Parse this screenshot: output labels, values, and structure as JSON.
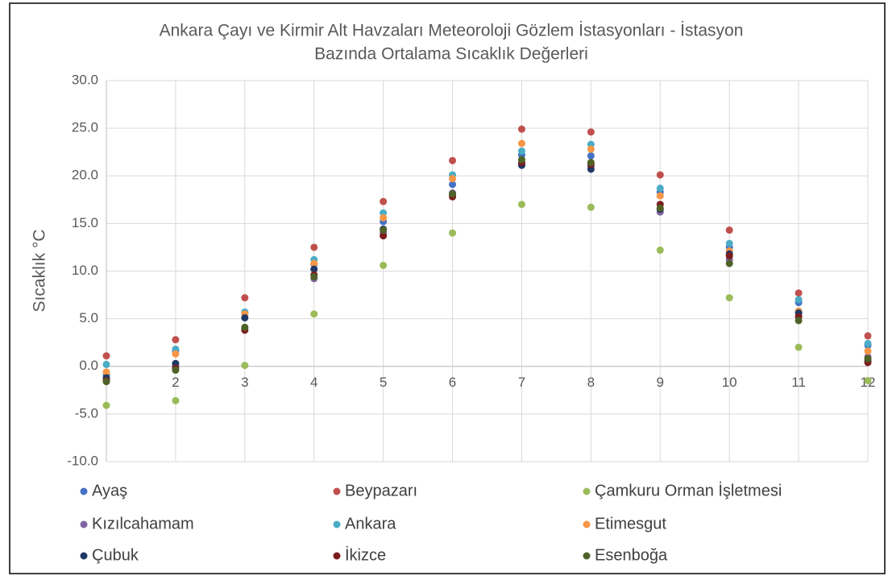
{
  "chart_data": {
    "type": "scatter",
    "title": [
      "Ankara Çayı ve Kirmir Alt Havzaları Meteoroloji Gözlem İstasyonları - İstasyon",
      "Bazında Ortalama Sıcaklık Değerleri"
    ],
    "y_label": "Sıcaklık °C",
    "x": [
      1,
      2,
      3,
      4,
      5,
      6,
      7,
      8,
      9,
      10,
      11,
      12
    ],
    "xlim": [
      1,
      12
    ],
    "xticks": [
      2,
      3,
      4,
      5,
      6,
      7,
      8,
      9,
      10,
      11,
      12
    ],
    "ylim": [
      -10,
      30
    ],
    "yticks": [
      {
        "value": -10,
        "label": "-10.0"
      },
      {
        "value": -5,
        "label": "-5.0"
      },
      {
        "value": 0,
        "label": "0.0"
      },
      {
        "value": 5,
        "label": "5.0"
      },
      {
        "value": 10,
        "label": "10.0"
      },
      {
        "value": 15,
        "label": "15.0"
      },
      {
        "value": 20,
        "label": "20.0"
      },
      {
        "value": 25,
        "label": "25.0"
      },
      {
        "value": 30,
        "label": "30.0"
      }
    ],
    "grid": true,
    "legend": "bottom",
    "series": [
      {
        "name": "Ayaş",
        "color": "#4472c4",
        "values": [
          -0.9,
          1.6,
          5.6,
          10.7,
          15.2,
          19.1,
          22.2,
          22.1,
          18.3,
          12.5,
          6.7,
          2.2
        ]
      },
      {
        "name": "Beypazarı",
        "color": "#c0504d",
        "values": [
          1.1,
          2.8,
          7.2,
          12.5,
          17.3,
          21.6,
          24.9,
          24.6,
          20.1,
          14.3,
          7.7,
          3.2
        ]
      },
      {
        "name": "Çamkuru Orman İşletmesi",
        "color": "#9bbb59",
        "values": [
          -4.1,
          -3.6,
          0.1,
          5.5,
          10.6,
          14.0,
          17.0,
          16.7,
          12.2,
          7.2,
          2.0,
          -1.5
        ]
      },
      {
        "name": "Kızılcahamam",
        "color": "#8064a2",
        "values": [
          -1.3,
          0.0,
          4.0,
          9.2,
          14.0,
          18.2,
          21.3,
          21.0,
          16.2,
          11.2,
          5.3,
          1.0
        ]
      },
      {
        "name": "Ankara",
        "color": "#4bacc6",
        "values": [
          0.2,
          1.8,
          5.7,
          11.2,
          16.1,
          20.1,
          22.6,
          23.3,
          18.7,
          12.9,
          7.0,
          2.4
        ]
      },
      {
        "name": "Etimesgut",
        "color": "#f79646",
        "values": [
          -0.6,
          1.3,
          5.5,
          10.8,
          15.6,
          19.7,
          23.4,
          22.8,
          17.9,
          12.1,
          5.8,
          1.6
        ]
      },
      {
        "name": "Çubuk",
        "color": "#1f3864",
        "values": [
          -1.2,
          0.3,
          5.1,
          10.2,
          14.4,
          18.0,
          21.1,
          20.7,
          16.5,
          11.8,
          5.6,
          0.6
        ]
      },
      {
        "name": "İkizce",
        "color": "#7b1e1e",
        "values": [
          -1.5,
          -0.2,
          3.8,
          9.6,
          13.7,
          17.8,
          21.4,
          21.2,
          17.0,
          11.6,
          5.2,
          0.4
        ]
      },
      {
        "name": "Esenboğa",
        "color": "#4f6228",
        "values": [
          -1.6,
          -0.4,
          4.1,
          9.4,
          14.3,
          18.1,
          21.7,
          21.4,
          16.6,
          10.8,
          4.8,
          0.8
        ]
      }
    ]
  }
}
